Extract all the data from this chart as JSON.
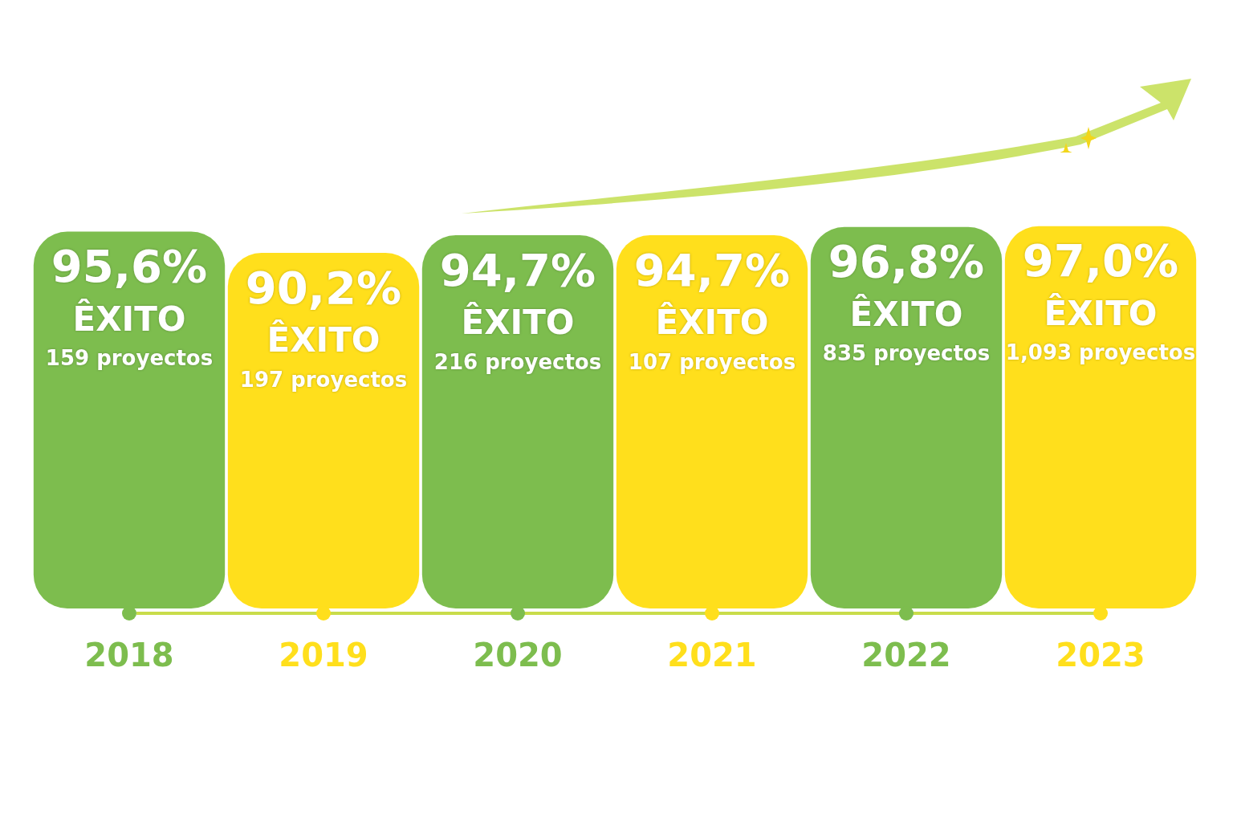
{
  "chart_data": {
    "type": "bar",
    "categories": [
      "2018",
      "2019",
      "2020",
      "2021",
      "2022",
      "2023"
    ],
    "values": [
      95.6,
      90.2,
      94.7,
      94.7,
      96.8,
      97.0
    ],
    "colors": [
      "#7dbd4e",
      "#ffdf1c",
      "#7dbd4e",
      "#ffdf1c",
      "#7dbd4e",
      "#ffdf1c"
    ],
    "value_labels": [
      "95,6%\nÊXITO\n159 proyectos",
      "90,2%\nÊXITO\n197 proyectos",
      "94,7%\nÊXITO\n216 proyectos",
      "94,7%\nÊXITO\n107 proyectos",
      "96,8%\nÊXITO\n835 proyectos",
      "97,0%\nÊXITO\n1,093 proyectos"
    ]
  }
}
